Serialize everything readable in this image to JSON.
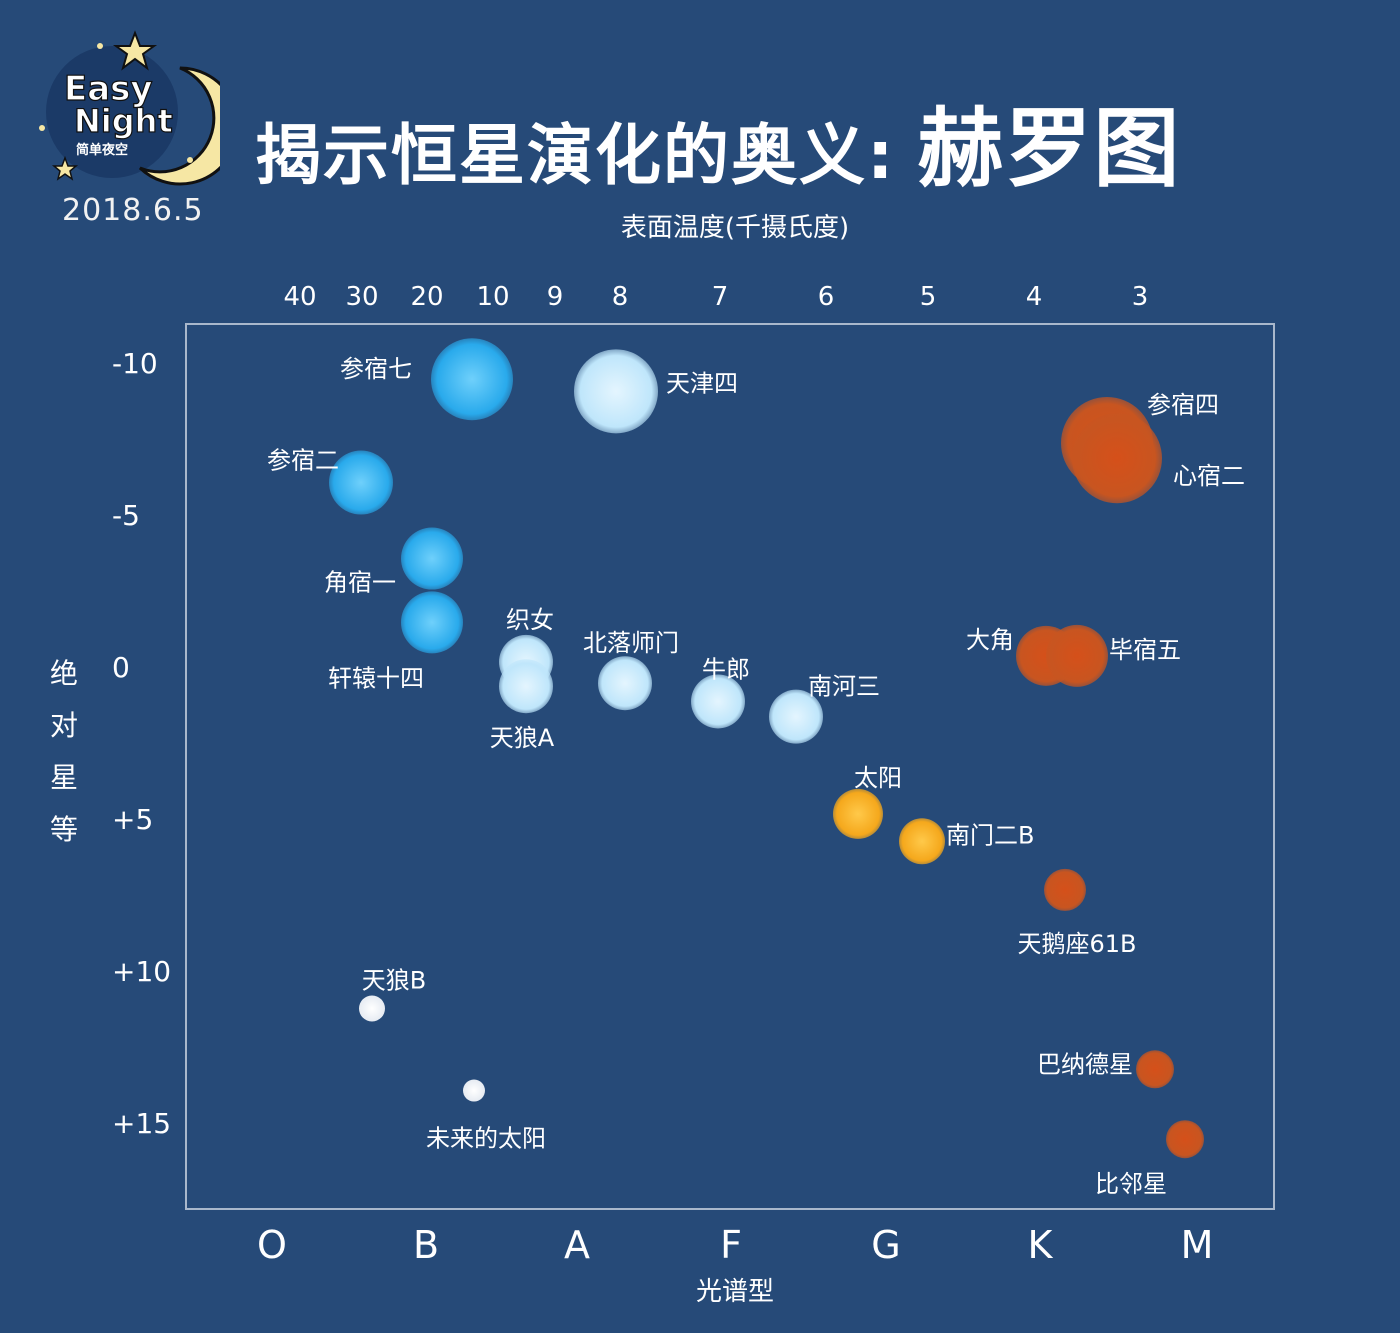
{
  "brand": {
    "name_line1": "Easy",
    "name_line2": "Night",
    "subtitle": "简单夜空",
    "date": "2018.6.5"
  },
  "header": {
    "title_main": "揭示恒星演化的奥义:",
    "title_big": "赫罗图"
  },
  "colors": {
    "background": "#264a78",
    "plot_border": "#a9b8cc",
    "blue_star": "#29aaec",
    "pale_blue_star": "#bfe6fb",
    "yellow_star": "#f5a81c",
    "orange_star": "#cf5a1e",
    "white_star": "#f5f7fa"
  },
  "chart_data": {
    "type": "scatter",
    "title": "",
    "xlabel_top": "表面温度(千摄氏度)",
    "xlabel_bottom": "光谱型",
    "ylabel": "绝对星等",
    "top_ticks": [
      "40",
      "30",
      "20",
      "10",
      "9",
      "8",
      "7",
      "6",
      "5",
      "4",
      "3"
    ],
    "bottom_ticks": [
      "O",
      "B",
      "A",
      "F",
      "G",
      "K",
      "M"
    ],
    "yticks": [
      "-10",
      "-5",
      "0",
      "+5",
      "+10",
      "+15"
    ],
    "ylim": [
      -11,
      18
    ],
    "grid": false,
    "points": [
      {
        "name": "参宿七",
        "temp": "12",
        "mag": -9.5,
        "color": "blue"
      },
      {
        "name": "天津四",
        "temp": "8.3",
        "mag": -9.1,
        "color": "pale_blue"
      },
      {
        "name": "参宿四",
        "temp": "3.3",
        "mag": -7.4,
        "color": "orange"
      },
      {
        "name": "心宿二",
        "temp": "3.3",
        "mag": -6.9,
        "color": "orange"
      },
      {
        "name": "参宿二",
        "temp": "28",
        "mag": -6.1,
        "color": "blue"
      },
      {
        "name": "角宿一",
        "temp": "22",
        "mag": -3.6,
        "color": "blue"
      },
      {
        "name": "轩辕十四",
        "temp": "22",
        "mag": -1.5,
        "color": "blue"
      },
      {
        "name": "织女",
        "temp": "9.6",
        "mag": -0.2,
        "color": "pale_blue"
      },
      {
        "name": "天狼A",
        "temp": "9.6",
        "mag": 0.6,
        "color": "pale_blue"
      },
      {
        "name": "北落师门",
        "temp": "8.2",
        "mag": 0.5,
        "color": "pale_blue"
      },
      {
        "name": "大角",
        "temp": "4.1",
        "mag": -0.4,
        "color": "orange"
      },
      {
        "name": "毕宿五",
        "temp": "3.8",
        "mag": -0.4,
        "color": "orange"
      },
      {
        "name": "牛郎",
        "temp": "7.0",
        "mag": 1.1,
        "color": "pale_blue"
      },
      {
        "name": "南河三",
        "temp": "6.3",
        "mag": 1.6,
        "color": "pale_blue"
      },
      {
        "name": "太阳",
        "temp": "5.8",
        "mag": 4.8,
        "color": "yellow"
      },
      {
        "name": "南门二B",
        "temp": "5.2",
        "mag": 5.7,
        "color": "yellow"
      },
      {
        "name": "天鹅座61B",
        "temp": "4.0",
        "mag": 7.3,
        "color": "orange"
      },
      {
        "name": "天狼B",
        "temp": "25",
        "mag": 11.2,
        "color": "white"
      },
      {
        "name": "未来的太阳",
        "temp": "11",
        "mag": 13.9,
        "color": "white"
      },
      {
        "name": "巴纳德星",
        "temp": "3.1",
        "mag": 13.2,
        "color": "orange"
      },
      {
        "name": "比邻星",
        "temp": "3.0",
        "mag": 15.5,
        "color": "orange"
      }
    ]
  }
}
